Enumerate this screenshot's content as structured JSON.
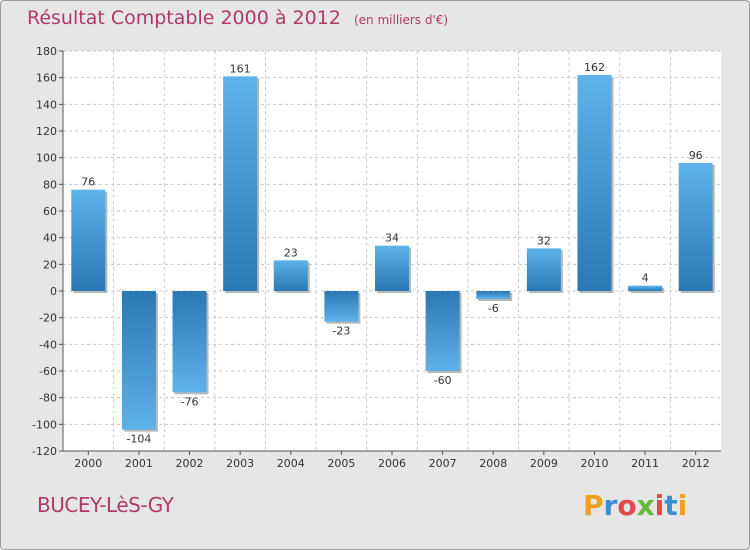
{
  "header": {
    "title": "Résultat Comptable 2000 à 2012",
    "subtitle": "(en milliers d'€)"
  },
  "footer": {
    "commune": "BUCEY-LèS-GY",
    "brand": "Proxiti",
    "brand_colors": [
      "#f0a020",
      "#3a8fd0",
      "#e04a4a",
      "#6cb83a",
      "#e04a4a",
      "#3a8fd0",
      "#f0a020"
    ]
  },
  "chart_data": {
    "type": "bar",
    "title": "Résultat Comptable 2000 à 2012",
    "subtitle": "(en milliers d'€)",
    "categories": [
      "2000",
      "2001",
      "2002",
      "2003",
      "2004",
      "2005",
      "2006",
      "2007",
      "2008",
      "2009",
      "2010",
      "2011",
      "2012"
    ],
    "values": [
      76,
      -104,
      -76,
      161,
      23,
      -23,
      34,
      -60,
      -6,
      32,
      162,
      4,
      96
    ],
    "data_labels": [
      "76",
      "-104",
      "-76",
      "161",
      "23",
      "-23",
      "34",
      "-60",
      "-6",
      "32",
      "162",
      "4",
      "96"
    ],
    "ylim": [
      -120,
      180
    ],
    "yticks": [
      180,
      160,
      140,
      120,
      100,
      80,
      60,
      40,
      20,
      0,
      -20,
      -40,
      -60,
      -80,
      -100,
      -120
    ],
    "grid": true,
    "colors": {
      "bar_light": "#5eb2ea",
      "bar_dark": "#2a78b4",
      "plot_bg": "#ffffff",
      "grid": "#c8c8c8"
    }
  }
}
